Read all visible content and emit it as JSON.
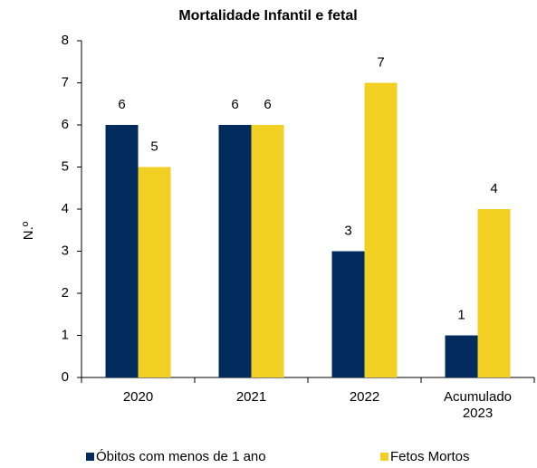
{
  "chart_data": {
    "type": "bar",
    "title": "Mortalidade Infantil e fetal",
    "y_label": "N.º",
    "categories": [
      "2020",
      "2021",
      "2022",
      "Acumulado 2023"
    ],
    "series": [
      {
        "name": "Óbitos com menos de 1 ano",
        "color": "#002b5c",
        "values": [
          6,
          6,
          3,
          1
        ]
      },
      {
        "name": "Fetos Mortos",
        "color": "#f2cf23",
        "values": [
          5,
          6,
          7,
          4
        ]
      }
    ],
    "ylim": [
      0,
      8
    ],
    "yticks": [
      0,
      1,
      2,
      3,
      4,
      5,
      6,
      7,
      8
    ],
    "grid": false
  }
}
